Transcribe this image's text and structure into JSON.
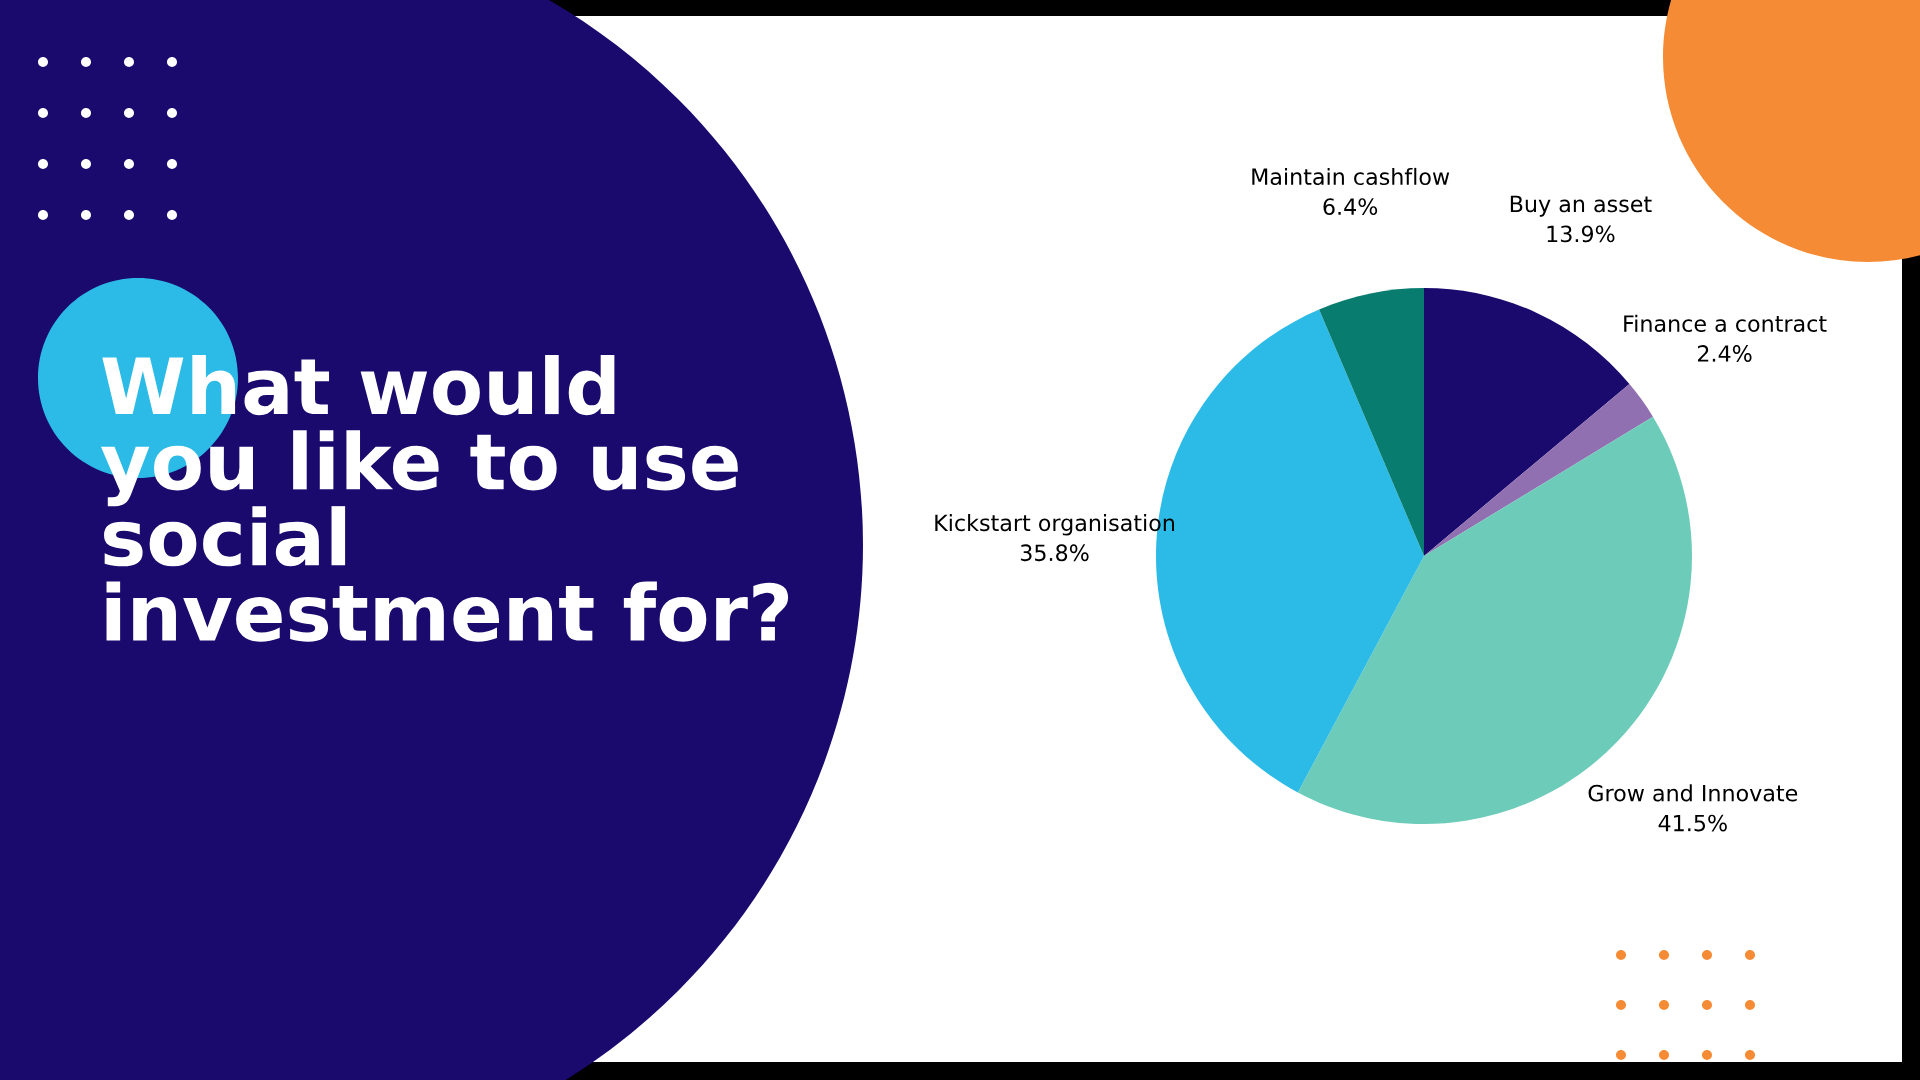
{
  "chart_data": {
    "type": "pie",
    "title": "What would\nyou like to use\nsocial\ninvestment for?",
    "categories": [
      "Buy an asset",
      "Finance a contract",
      "Grow and Innovate",
      "Kickstart organisation",
      "Maintain cashflow"
    ],
    "values": [
      13.9,
      2.4,
      41.5,
      35.8,
      6.4
    ],
    "colors": [
      "#1a0a6e",
      "#9070b0",
      "#6ccbb9",
      "#2bbbe6",
      "#087c6e"
    ],
    "value_labels": [
      "13.9%",
      "2.4%",
      "41.5%",
      "35.8%",
      "6.4%"
    ],
    "legend": false
  }
}
